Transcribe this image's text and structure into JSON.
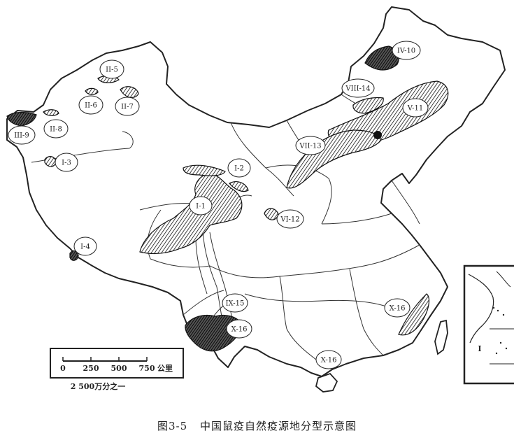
{
  "caption": {
    "figure_no": "图3-5",
    "title": "中国鼠疫自然疫源地分型示意图"
  },
  "scale": {
    "ticks": [
      "0",
      "250",
      "500",
      "750"
    ],
    "unit": "公里",
    "ratio": "2 500万分之一"
  },
  "inset_label": "I",
  "regions": [
    {
      "id": "I-1"
    },
    {
      "id": "I-2"
    },
    {
      "id": "I-3"
    },
    {
      "id": "I-4"
    },
    {
      "id": "II-5"
    },
    {
      "id": "II-6"
    },
    {
      "id": "II-7"
    },
    {
      "id": "II-8"
    },
    {
      "id": "III-9"
    },
    {
      "id": "IV-10"
    },
    {
      "id": "V-11"
    },
    {
      "id": "VI-12"
    },
    {
      "id": "VII-13"
    },
    {
      "id": "VIII-14"
    },
    {
      "id": "IX-15"
    },
    {
      "id": "X-16"
    },
    {
      "id": "X-16"
    },
    {
      "id": "X-16"
    }
  ]
}
